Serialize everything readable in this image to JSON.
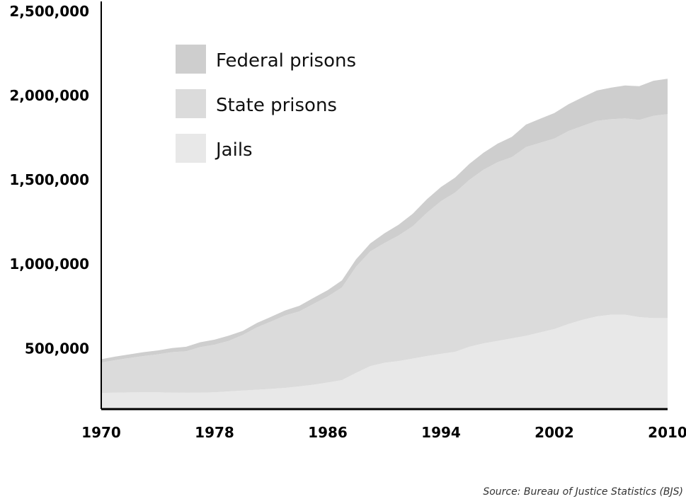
{
  "chart_data": {
    "type": "area",
    "stacked": true,
    "title": "",
    "xlabel": "",
    "ylabel": "",
    "ylim": [
      140000,
      2500000
    ],
    "xlim": [
      1970,
      2010
    ],
    "x_ticks": [
      1970,
      1978,
      1986,
      1994,
      2002,
      2010
    ],
    "y_ticks": [
      500000,
      1000000,
      1500000,
      2000000,
      2500000
    ],
    "y_tick_labels": [
      "500,000",
      "1,000,000",
      "1,500,000",
      "2,000,000",
      "2,500,000"
    ],
    "legend_position": "top-left",
    "x": [
      1970,
      1971,
      1972,
      1973,
      1974,
      1975,
      1976,
      1977,
      1978,
      1979,
      1980,
      1981,
      1982,
      1983,
      1984,
      1985,
      1986,
      1987,
      1988,
      1989,
      1990,
      1991,
      1992,
      1993,
      1994,
      1995,
      1996,
      1997,
      1998,
      1999,
      2000,
      2001,
      2002,
      2003,
      2004,
      2005,
      2006,
      2007,
      2008,
      2009,
      2010
    ],
    "series": [
      {
        "name": "Jails",
        "color": "#e8e8e8",
        "values": [
          236000,
          238000,
          239000,
          240000,
          240000,
          238000,
          237000,
          238000,
          240000,
          245000,
          250000,
          255000,
          260000,
          266000,
          275000,
          285000,
          298000,
          312000,
          355000,
          395000,
          415000,
          425000,
          440000,
          455000,
          468000,
          480000,
          510000,
          530000,
          545000,
          560000,
          575000,
          595000,
          615000,
          645000,
          670000,
          690000,
          700000,
          700000,
          686000,
          680000,
          680000
        ]
      },
      {
        "name": "State prisons",
        "color": "#dbdbdb",
        "values": [
          180000,
          193000,
          204000,
          215000,
          225000,
          240000,
          246000,
          270000,
          282000,
          300000,
          330000,
          370000,
          400000,
          430000,
          445000,
          480000,
          510000,
          550000,
          630000,
          680000,
          710000,
          745000,
          785000,
          850000,
          906000,
          945000,
          990000,
          1030000,
          1060000,
          1075000,
          1120000,
          1125000,
          1130000,
          1145000,
          1150000,
          1160000,
          1160000,
          1165000,
          1170000,
          1200000,
          1210000
        ]
      },
      {
        "name": "Federal prisons",
        "color": "#cecece",
        "values": [
          20000,
          21000,
          22000,
          23000,
          23000,
          24000,
          27000,
          29000,
          30000,
          31000,
          24000,
          26000,
          28000,
          30000,
          33000,
          35000,
          38000,
          42000,
          44000,
          48000,
          58000,
          64000,
          74000,
          80000,
          84000,
          89000,
          95000,
          101000,
          110000,
          120000,
          133000,
          143000,
          151000,
          159000,
          170000,
          180000,
          187000,
          195000,
          200000,
          208000,
          210000
        ]
      }
    ],
    "legend_order": [
      "Federal prisons",
      "State prisons",
      "Jails"
    ],
    "source": "Source: Bureau of Justice Statistics (BJS)"
  }
}
